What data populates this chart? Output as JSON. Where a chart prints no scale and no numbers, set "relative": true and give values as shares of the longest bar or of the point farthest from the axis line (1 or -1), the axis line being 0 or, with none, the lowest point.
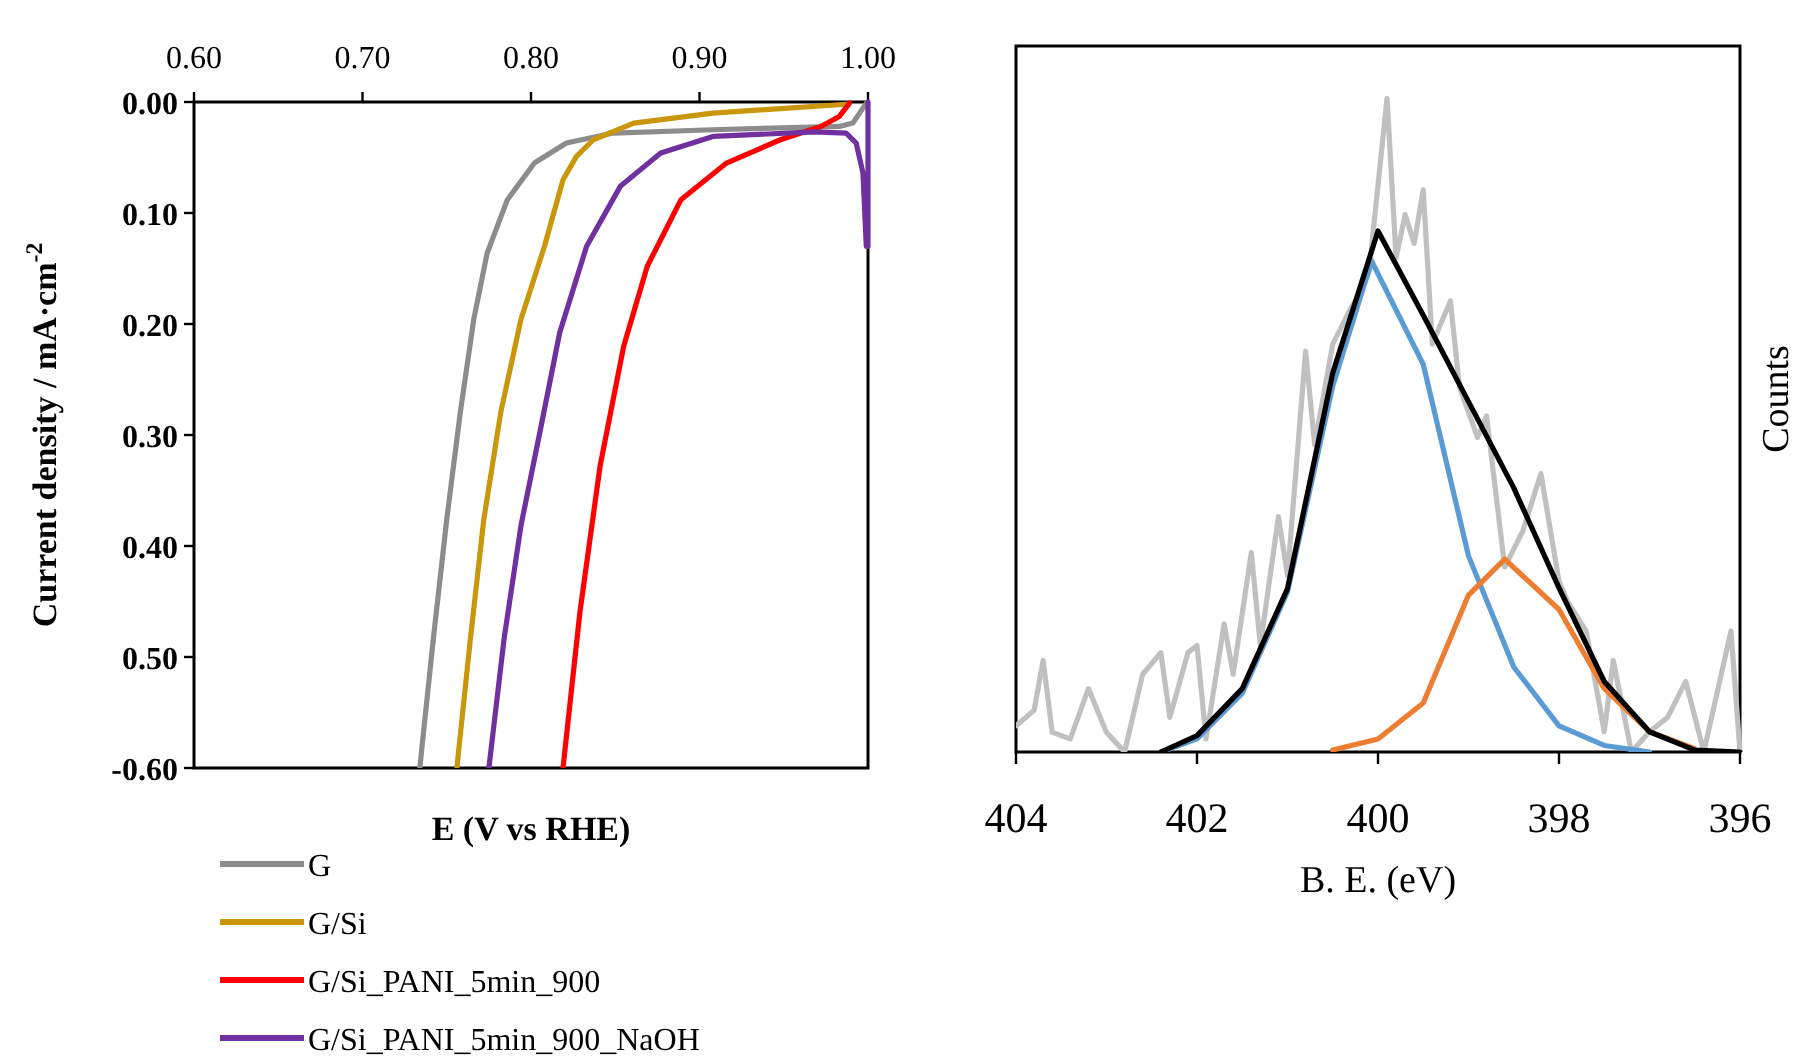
{
  "chart_data": [
    {
      "type": "line",
      "ylabel": "Current density / mA·cm$^{-2}$",
      "xlabel": "E (V vs RHE)",
      "xlim": [
        0.6,
        1.0
      ],
      "xticks": [
        {
          "value": 0.6,
          "label": "0.60"
        },
        {
          "value": 0.7,
          "label": "0.70"
        },
        {
          "value": 0.8,
          "label": "0.80"
        },
        {
          "value": 0.9,
          "label": "0.90"
        },
        {
          "value": 1.0,
          "label": "1.00"
        }
      ],
      "ylim": [
        -0.6,
        0
      ],
      "yticks": [
        {
          "value": 0,
          "label": "0.00"
        },
        {
          "value": -0.1,
          "label": "0.10"
        },
        {
          "value": -0.2,
          "label": "0.20"
        },
        {
          "value": -0.3,
          "label": "0.30"
        },
        {
          "value": -0.4,
          "label": "0.40"
        },
        {
          "value": -0.5,
          "label": "0.50"
        },
        {
          "value": -0.6,
          "label": "-0.60"
        }
      ],
      "legend": "bottom",
      "series": [
        {
          "name": "G",
          "color": "#8c8c8c",
          "x": [
            0.734,
            0.742,
            0.75,
            0.758,
            0.766,
            0.774,
            0.786,
            0.802,
            0.821,
            0.849,
            0.908,
            0.983,
            0.991,
            0.999
          ],
          "values": [
            -0.6,
            -0.484,
            -0.376,
            -0.28,
            -0.196,
            -0.136,
            -0.088,
            -0.055,
            -0.037,
            -0.028,
            -0.025,
            -0.022,
            -0.019,
            -0.001
          ]
        },
        {
          "name": "G/Si",
          "color": "#c9960c",
          "x": [
            0.756,
            0.764,
            0.772,
            0.782,
            0.794,
            0.808,
            0.819,
            0.827,
            0.837,
            0.861,
            0.908,
            0.987
          ],
          "values": [
            -0.6,
            -0.484,
            -0.376,
            -0.28,
            -0.196,
            -0.13,
            -0.07,
            -0.049,
            -0.034,
            -0.019,
            -0.01,
            -0.002
          ]
        },
        {
          "name": "G/Si_PANI_5min_900",
          "color": "#ff0000",
          "x": [
            0.819,
            0.829,
            0.841,
            0.855,
            0.869,
            0.889,
            0.916,
            0.948,
            0.972,
            0.983,
            0.989
          ],
          "values": [
            -0.6,
            -0.46,
            -0.328,
            -0.22,
            -0.148,
            -0.088,
            -0.055,
            -0.034,
            -0.022,
            -0.013,
            -0.001
          ]
        },
        {
          "name": "G/Si_PANI_5min_900_NaOH",
          "color": "#7030a0",
          "x": [
            0.775,
            0.784,
            0.794,
            0.806,
            0.817,
            0.833,
            0.853,
            0.877,
            0.908,
            0.968,
            0.987,
            0.993,
            0.997,
            0.999,
            1.0,
            1.0
          ],
          "values": [
            -0.6,
            -0.484,
            -0.382,
            -0.292,
            -0.208,
            -0.13,
            -0.076,
            -0.046,
            -0.031,
            -0.027,
            -0.028,
            -0.037,
            -0.064,
            -0.13,
            -0.13,
            0
          ]
        }
      ]
    },
    {
      "type": "line",
      "relative": true,
      "xlabel": "B. E. (eV)",
      "y2label": "Counts",
      "xlim": [
        404,
        396
      ],
      "xticks": [
        404,
        402,
        400,
        398,
        396
      ],
      "series": [
        {
          "color": "#c0c0c0",
          "x": [
            404,
            403.8,
            403.7,
            403.6,
            403.4,
            403.2,
            403,
            402.8,
            402.6,
            402.4,
            402.3,
            402.1,
            402,
            401.9,
            401.7,
            401.6,
            401.4,
            401.3,
            401.1,
            401,
            400.8,
            400.7,
            400.5,
            400.3,
            400.2,
            400.1,
            399.9,
            399.8,
            399.7,
            399.6,
            399.5,
            399.4,
            399.2,
            399.1,
            398.9,
            398.8,
            398.6,
            398.4,
            398.2,
            398,
            397.9,
            397.7,
            397.5,
            397.4,
            397.2,
            397,
            396.8,
            396.6,
            396.4,
            396.1,
            396
          ],
          "values": [
            0.04,
            0.064,
            0.14,
            0.03,
            0.02,
            0.097,
            0.03,
            0,
            0.119,
            0.152,
            0.053,
            0.152,
            0.163,
            0.02,
            0.196,
            0.119,
            0.305,
            0.163,
            0.36,
            0.27,
            0.613,
            0.47,
            0.624,
            0.679,
            0.701,
            0.734,
            1,
            0.756,
            0.822,
            0.778,
            0.86,
            0.624,
            0.69,
            0.558,
            0.481,
            0.514,
            0.283,
            0.338,
            0.426,
            0.261,
            0.229,
            0.185,
            0.031,
            0.14,
            0,
            0.031,
            0.053,
            0.108,
            0,
            0.185,
            0
          ]
        },
        {
          "color": "#5b9bd5",
          "x": [
            402.4,
            402,
            401.5,
            401,
            400.5,
            400.07,
            399.5,
            399,
            398.5,
            398,
            397.5,
            397
          ],
          "values": [
            0,
            0.02,
            0.09,
            0.245,
            0.56,
            0.751,
            0.593,
            0.3,
            0.13,
            0.04,
            0.01,
            0
          ]
        },
        {
          "color": "#ed7d31",
          "x": [
            400.5,
            400,
            399.5,
            399,
            398.6,
            398,
            397.5,
            397,
            396.5
          ],
          "values": [
            0.003,
            0.02,
            0.075,
            0.24,
            0.295,
            0.218,
            0.097,
            0.031,
            0.005
          ]
        },
        {
          "color": "#000000",
          "x": [
            402.4,
            402,
            401.5,
            401,
            400.5,
            400,
            399.5,
            399,
            398.5,
            398,
            397.5,
            397,
            396.5,
            396
          ],
          "values": [
            0,
            0.025,
            0.097,
            0.25,
            0.58,
            0.797,
            0.668,
            0.536,
            0.404,
            0.251,
            0.108,
            0.031,
            0.003,
            0
          ]
        }
      ]
    }
  ]
}
